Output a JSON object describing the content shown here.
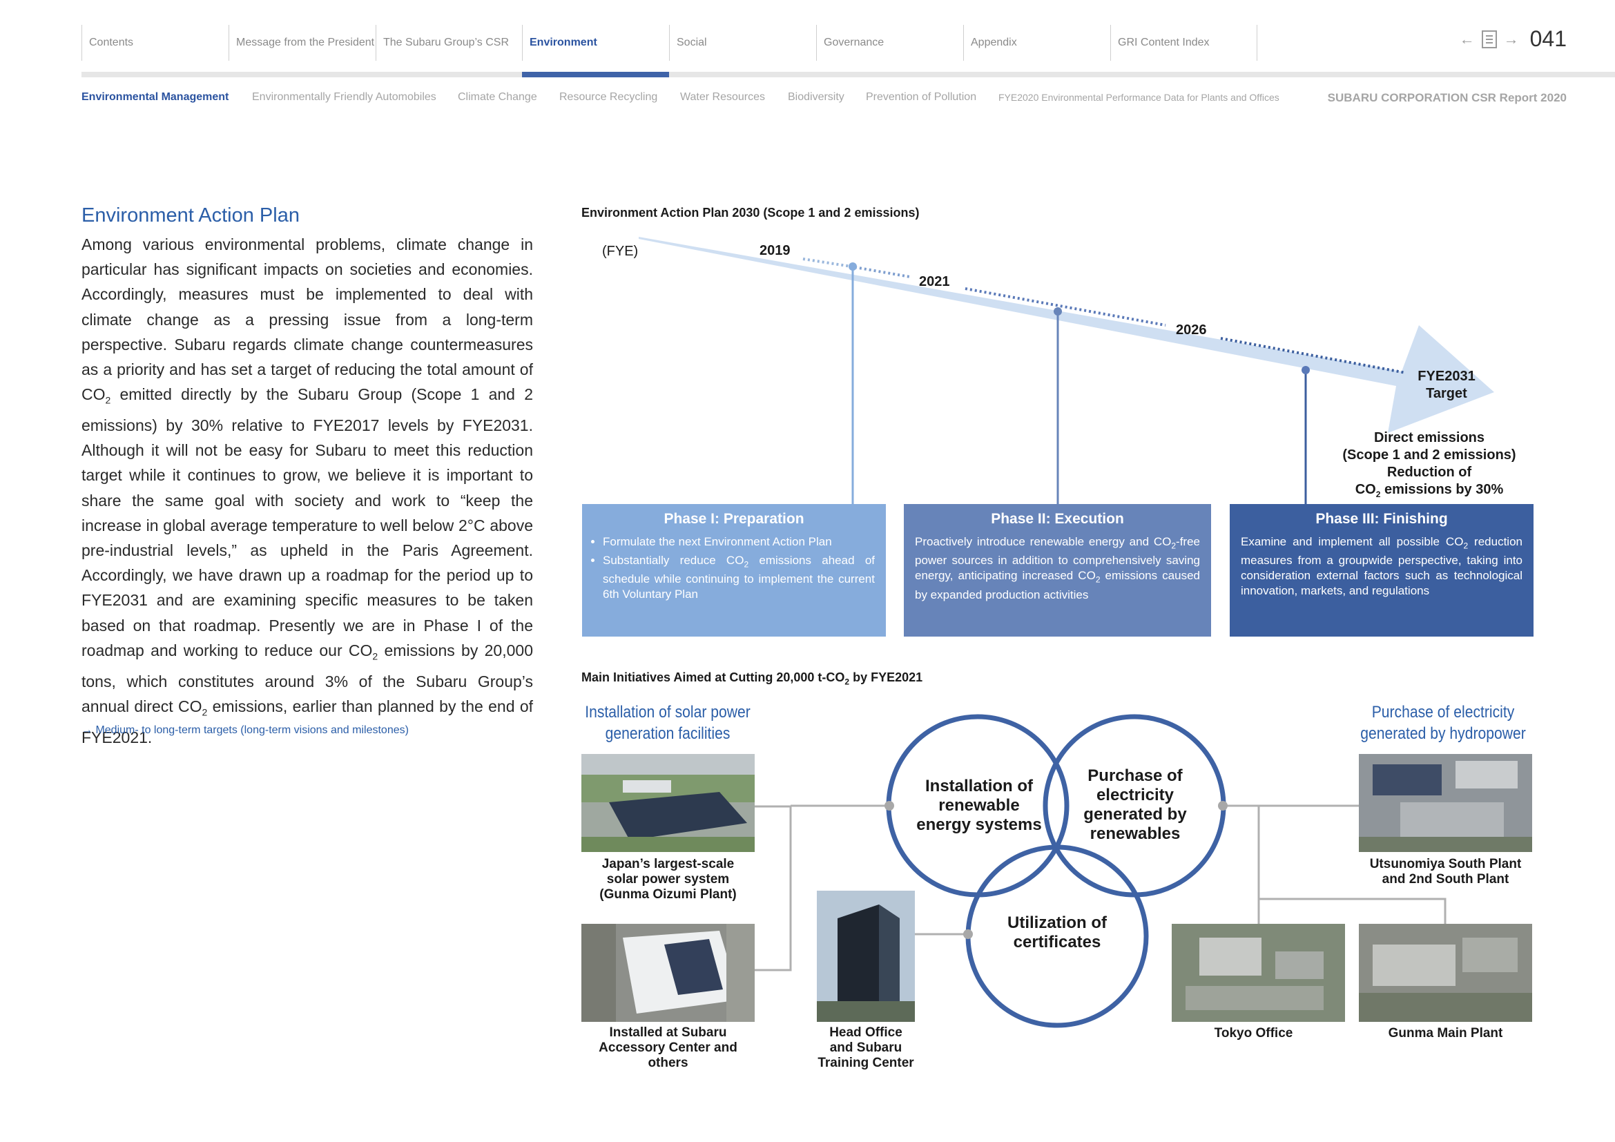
{
  "header": {
    "tabs": [
      "Contents",
      "Message from the President",
      "The Subaru Group’s CSR",
      "Environment",
      "Social",
      "Governance",
      "Appendix",
      "GRI Content Index"
    ],
    "active_tab": "Environment",
    "page_number": "041"
  },
  "subnav": {
    "items": [
      "Environmental Management",
      "Environmentally Friendly Automobiles",
      "Climate Change",
      "Resource Recycling",
      "Water Resources",
      "Biodiversity",
      "Prevention of Pollution",
      "FYE2020 Environmental Performance Data for Plants and Offices"
    ],
    "report_title": "SUBARU CORPORATION CSR Report 2020"
  },
  "article": {
    "title": "Environment Action Plan",
    "body_1": "Among various environmental problems, climate change in particular has significant impacts on societies and economies. Accordingly, measures must be implemented to deal with climate change as a pressing issue from a long-term perspective. Subaru regards climate change countermeasures as a priority and has set a target of reducing the total amount of CO",
    "body_2": " emitted directly by the Subaru Group (Scope 1 and 2 emissions) by 30% relative to FYE2017 levels by FYE2031. Although it will not be easy for Subaru to meet this reduction target while it continues to grow, we believe it is important to share the same goal with society and work to “keep the increase in global average temperature to well below 2°C above pre-industrial levels,” as upheld in the Paris Agreement. Accordingly, we have drawn up a roadmap for the period up to FYE2031 and are examining specific measures to be taken based on that roadmap. Presently we are in Phase I of the roadmap and working to reduce our CO",
    "body_3": " emissions by 20,000 tons, which constitutes around 3% of the Subaru Group’s annual direct CO",
    "body_4": " emissions, earlier than planned by the end of FYE2021.",
    "link": "→ Medium- to long-term targets (long-term visions and milestones)"
  },
  "plan": {
    "caption": "Environment Action Plan 2030 (Scope 1 and 2 emissions)",
    "fye_label": "(FYE)",
    "years": [
      "2019",
      "2021",
      "2026"
    ],
    "target_label_1": "FYE2031",
    "target_label_2": "Target",
    "target_text_1": "Direct emissions",
    "target_text_2": "(Scope 1 and 2 emissions)",
    "target_text_3": "Reduction of",
    "target_text_4": "CO",
    "target_text_5": " emissions by 30%",
    "phases": [
      {
        "title": "Phase I: Preparation",
        "bullet_1": "Formulate the next Environment Action Plan",
        "bullet_2a": "Substantially reduce CO",
        "bullet_2b": " emissions ahead of schedule while continuing to implement the current 6th Voluntary Plan",
        "color": "#86acdc"
      },
      {
        "title": "Phase II: Execution",
        "text_a": "Proactively introduce renewable energy and CO",
        "text_b": "-free power sources in addition to comprehensively saving energy, anticipating increased CO",
        "text_c": " emissions caused by expanded production activities",
        "color": "#6784b9"
      },
      {
        "title": "Phase III: Finishing",
        "text_a": "Examine and implement all possible CO",
        "text_b": " reduction measures from a groupwide perspective, taking into consideration external factors such as technological innovation, markets, and regulations",
        "color": "#3c5f9f"
      }
    ]
  },
  "initiatives": {
    "caption_a": "Main Initiatives Aimed at Cutting 20,000 t-CO",
    "caption_b": " by FYE2021",
    "subscript_2": "2",
    "solar_title_1": "Installation of solar power",
    "solar_title_2": "generation facilities",
    "hydro_title_1": "Purchase of electricity",
    "hydro_title_2": "generated by hydropower",
    "venn": {
      "left_1": "Installation of",
      "left_2": "renewable",
      "left_3": "energy systems",
      "right_1": "Purchase of",
      "right_2": "electricity",
      "right_3": "generated by",
      "right_4": "renewables",
      "bottom_1": "Utilization of",
      "bottom_2": "certificates"
    },
    "photos": {
      "gunma_oizumi_1": "Japan’s largest-scale",
      "gunma_oizumi_2": "solar power system",
      "gunma_oizumi_3": "(Gunma Oizumi Plant)",
      "accessory_1": "Installed at Subaru",
      "accessory_2": "Accessory Center and",
      "accessory_3": "others",
      "head_office_1": "Head Office",
      "head_office_2": "and Subaru",
      "head_office_3": "Training Center",
      "utsunomiya_1": "Utsunomiya South Plant",
      "utsunomiya_2": "and 2nd South Plant",
      "tokyo": "Tokyo Office",
      "gunma_main": "Gunma Main Plant"
    }
  },
  "colors": {
    "accent": "#2b5ea8",
    "arrow": "#cfdff2",
    "circle": "#3e62a4"
  }
}
